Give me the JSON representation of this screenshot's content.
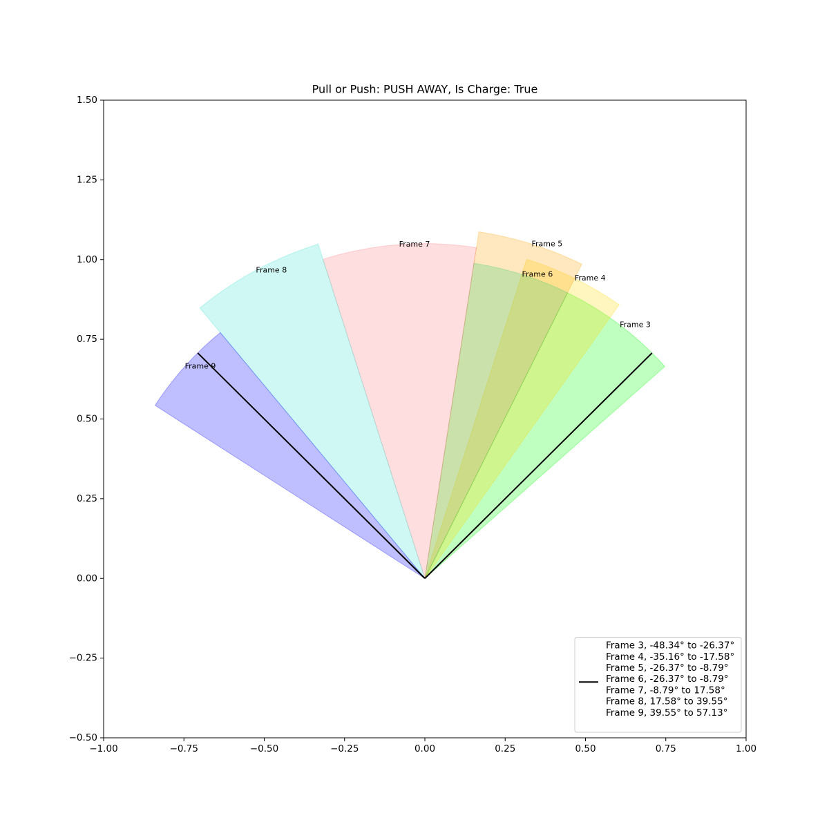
{
  "chart_data": {
    "type": "wedge",
    "title": "Pull or Push: PUSH AWAY, Is Charge: True",
    "xlim": [
      -1.0,
      1.0
    ],
    "ylim": [
      -0.5,
      1.5
    ],
    "xticks": [
      {
        "value": -1.0,
        "label": "−1.00"
      },
      {
        "value": -0.75,
        "label": "−0.75"
      },
      {
        "value": -0.5,
        "label": "−0.50"
      },
      {
        "value": -0.25,
        "label": "−0.25"
      },
      {
        "value": 0,
        "label": "0.00"
      },
      {
        "value": 0.25,
        "label": "0.25"
      },
      {
        "value": 0.5,
        "label": "0.50"
      },
      {
        "value": 0.75,
        "label": "0.75"
      },
      {
        "value": 1.0,
        "label": "1.00"
      }
    ],
    "yticks": [
      {
        "value": -0.5,
        "label": "−0.50"
      },
      {
        "value": -0.25,
        "label": "−0.25"
      },
      {
        "value": 0,
        "label": "0.00"
      },
      {
        "value": 0.25,
        "label": "0.25"
      },
      {
        "value": 0.5,
        "label": "0.50"
      },
      {
        "value": 0.75,
        "label": "0.75"
      },
      {
        "value": 1.0,
        "label": "1.00"
      },
      {
        "value": 1.25,
        "label": "1.25"
      },
      {
        "value": 1.5,
        "label": "1.50"
      }
    ],
    "series": [
      {
        "name": "Frame 3",
        "color": "#00ff00",
        "start": -48.34,
        "end": -26.37,
        "radius": 1.0
      },
      {
        "name": "Frame 4",
        "color": "#ffd700",
        "start": -35.16,
        "end": -17.58,
        "radius": 1.05
      },
      {
        "name": "Frame 5",
        "color": "#ffa500",
        "start": -26.37,
        "end": -8.79,
        "radius": 1.1
      },
      {
        "name": "Frame 6",
        "color": "#2ecc71",
        "start": -26.37,
        "end": -8.79,
        "radius": 1.0
      },
      {
        "name": "Frame 7",
        "color": "#ff7b84",
        "start": -8.79,
        "end": 17.58,
        "radius": 1.05
      },
      {
        "name": "Frame 8",
        "color": "#40e0d0",
        "start": 17.58,
        "end": 39.55,
        "radius": 1.1
      },
      {
        "name": "Frame 9",
        "color": "#0000ff",
        "start": 39.55,
        "end": 57.13,
        "radius": 1.0
      }
    ],
    "lines": [
      {
        "angle": -45,
        "length": 1.0,
        "color": "#000000"
      },
      {
        "angle": 45,
        "length": 1.0,
        "color": "#000000"
      }
    ],
    "legend": {
      "corner": "lower right",
      "entries": [
        "Frame 3, -48.34° to -26.37°",
        "Frame 4, -35.16° to -17.58°",
        "Frame 5, -26.37° to -8.79°",
        "Frame 6, -26.37° to -8.79°",
        "Frame 7, -8.79° to 17.58°",
        "Frame 8, 17.58° to 39.55°",
        "Frame 9, 39.55° to 57.13°"
      ]
    }
  }
}
